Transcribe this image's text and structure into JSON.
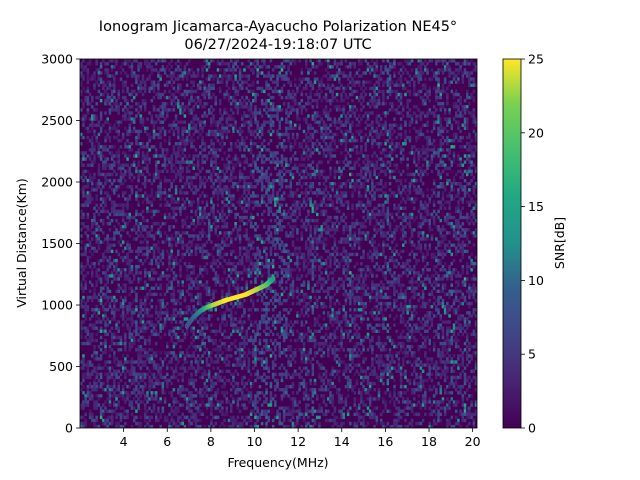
{
  "chart_data": {
    "type": "heatmap",
    "title": "Ionogram Jicamarca-Ayacucho Polarization NE45°",
    "subtitle": "06/27/2024-19:18:07 UTC",
    "xlabel": "Frequency(MHz)",
    "ylabel": "Virtual Distance(Km)",
    "xlim": [
      2.0,
      20.2
    ],
    "ylim": [
      0,
      3000
    ],
    "xticks": [
      4,
      6,
      8,
      10,
      12,
      14,
      16,
      18,
      20
    ],
    "yticks": [
      0,
      500,
      1000,
      1500,
      2000,
      2500,
      3000
    ],
    "colorbar": {
      "label": "SNR[dB]",
      "range": [
        0,
        25
      ],
      "ticks": [
        0,
        5,
        10,
        15,
        20,
        25
      ],
      "colormap": "viridis"
    },
    "trace": {
      "name": "",
      "x": [
        6.9,
        7.2,
        7.5,
        7.8,
        8.1,
        8.4,
        8.7,
        9.0,
        9.3,
        9.6,
        9.9,
        10.2,
        10.5,
        10.7,
        10.9
      ],
      "y": [
        830,
        900,
        950,
        980,
        1000,
        1020,
        1040,
        1055,
        1070,
        1085,
        1110,
        1135,
        1160,
        1190,
        1220
      ],
      "snr_db": [
        8,
        10,
        12,
        18,
        23,
        24,
        25,
        25,
        25,
        25,
        24,
        23,
        21,
        18,
        14
      ]
    },
    "noise": {
      "background_snr_db": [
        0,
        3
      ],
      "enhanced_band_mhz": [
        10.0,
        11.5
      ]
    }
  },
  "colors": {
    "viridis_0": "#440154",
    "viridis_low": "#46327e",
    "viridis_mid": "#21918c",
    "viridis_high": "#5ec962",
    "viridis_max": "#fde725"
  }
}
